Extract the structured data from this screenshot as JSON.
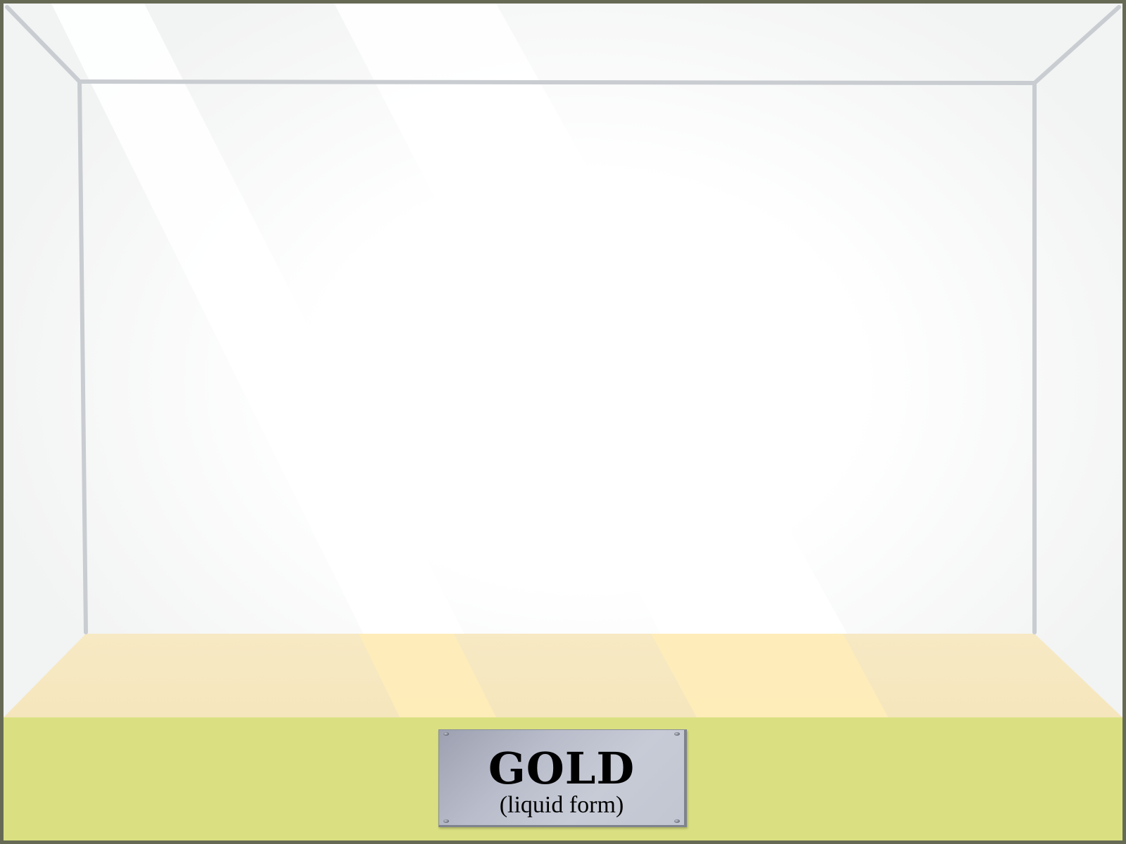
{
  "plaque": {
    "title": "GOLD",
    "subtitle": "(liquid form)"
  },
  "colors": {
    "outer_border": "#666a55",
    "glass_background": "#f5f6f6",
    "glass_center_glow": "#ffffff",
    "frame_edge": "#c9cdd1",
    "tank_floor": "#f6e8c0",
    "light_beam_on_floor": "#ffedb8",
    "base_stand": "#dae081",
    "plaque_metal": "#bfc3cf",
    "plaque_text": "#000000"
  },
  "icons": {
    "plaque_screws": "screw-icon"
  }
}
